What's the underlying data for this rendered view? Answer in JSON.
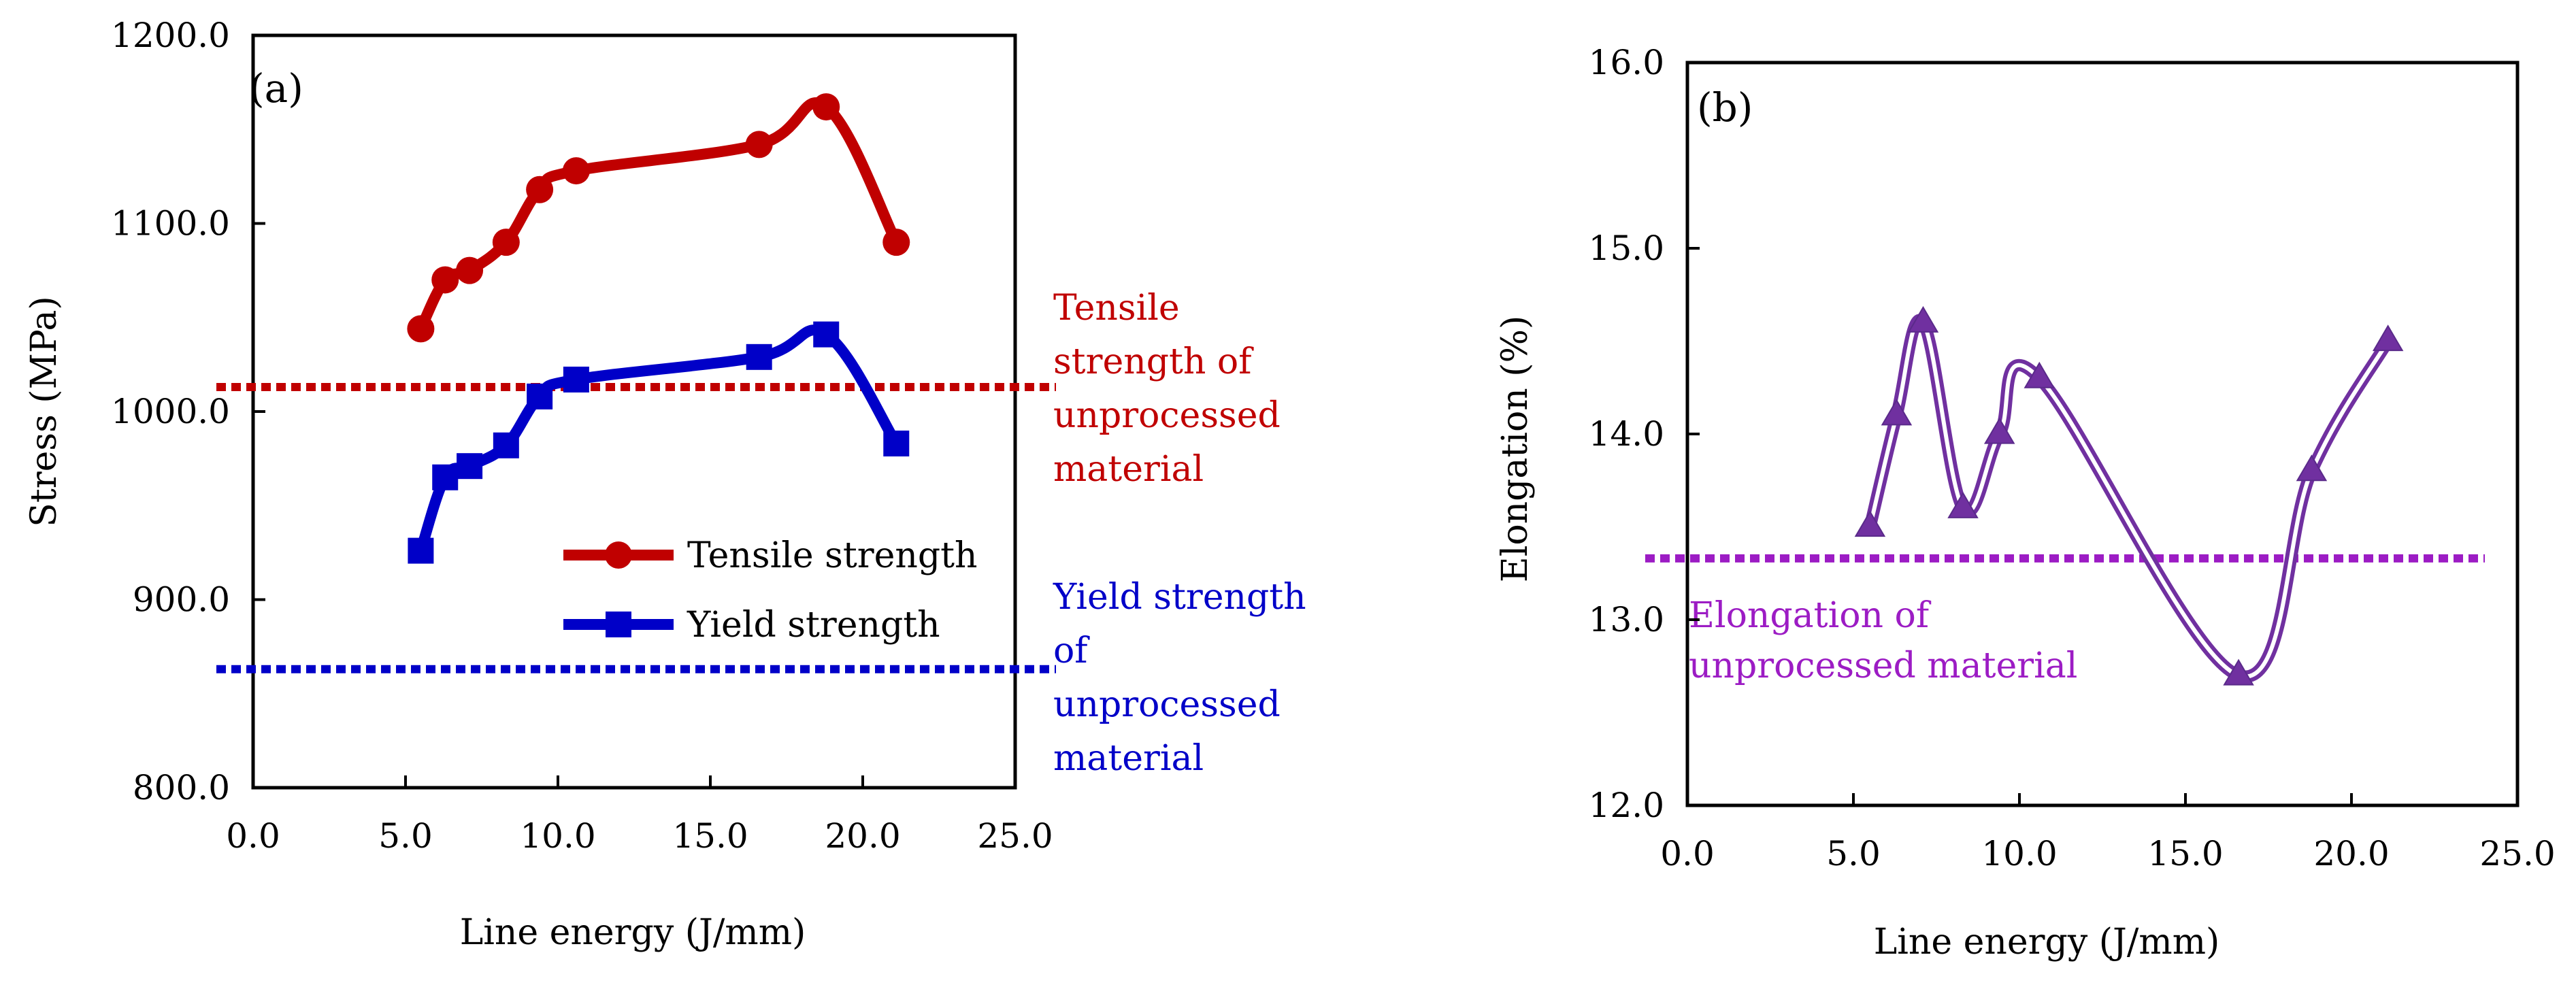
{
  "chart_data": [
    {
      "type": "line",
      "panel_label": "(a)",
      "xlabel": "Line energy (J/mm)",
      "ylabel": "Stress (MPa)",
      "xlim": [
        0,
        25
      ],
      "ylim": [
        800,
        1200
      ],
      "x_ticks": [
        "0.0",
        "5.0",
        "10.0",
        "15.0",
        "20.0",
        "25.0"
      ],
      "y_ticks": [
        "800.0",
        "900.0",
        "1000.0",
        "1100.0",
        "1200.0"
      ],
      "grid": false,
      "legend_position": "lower-right",
      "series": [
        {
          "name": "Tensile strength",
          "color": "#c00000",
          "marker": "circle",
          "x": [
            5.5,
            6.3,
            7.1,
            8.3,
            9.4,
            10.6,
            16.6,
            18.8,
            21.1
          ],
          "y": [
            1044,
            1070,
            1075,
            1090,
            1118,
            1128,
            1142,
            1162,
            1090
          ]
        },
        {
          "name": "Yield strength",
          "color": "#0000c8",
          "marker": "square",
          "x": [
            5.5,
            6.3,
            7.1,
            8.3,
            9.4,
            10.6,
            16.6,
            18.8,
            21.1
          ],
          "y": [
            926,
            965,
            971,
            982,
            1008,
            1017,
            1029,
            1041,
            983
          ]
        }
      ],
      "reference_lines": [
        {
          "value": 1013,
          "color": "#c00000",
          "label_lines": [
            "Tensile",
            "strength of",
            "unprocessed",
            "material"
          ]
        },
        {
          "value": 863,
          "color": "#0000c8",
          "label_lines": [
            "Yield strength",
            "of",
            "unprocessed",
            "material"
          ]
        }
      ]
    },
    {
      "type": "line",
      "panel_label": "(b)",
      "xlabel": "Line energy (J/mm)",
      "ylabel": "Elongation (%)",
      "xlim": [
        0,
        25
      ],
      "ylim": [
        12,
        16
      ],
      "x_ticks": [
        "0.0",
        "5.0",
        "10.0",
        "15.0",
        "20.0",
        "25.0"
      ],
      "y_ticks": [
        "12.0",
        "13.0",
        "14.0",
        "15.0",
        "16.0"
      ],
      "grid": false,
      "series": [
        {
          "name": "Elongation",
          "color": "#7030a0",
          "marker": "triangle",
          "x": [
            5.5,
            6.3,
            7.1,
            8.3,
            9.4,
            10.6,
            16.6,
            18.8,
            21.1
          ],
          "y": [
            13.5,
            14.1,
            14.6,
            13.6,
            14.0,
            14.3,
            12.7,
            13.8,
            14.5
          ]
        }
      ],
      "reference_lines": [
        {
          "value": 13.33,
          "color": "#9c1cc4",
          "label_lines": [
            "Elongation of",
            "unprocessed material"
          ]
        }
      ]
    }
  ]
}
